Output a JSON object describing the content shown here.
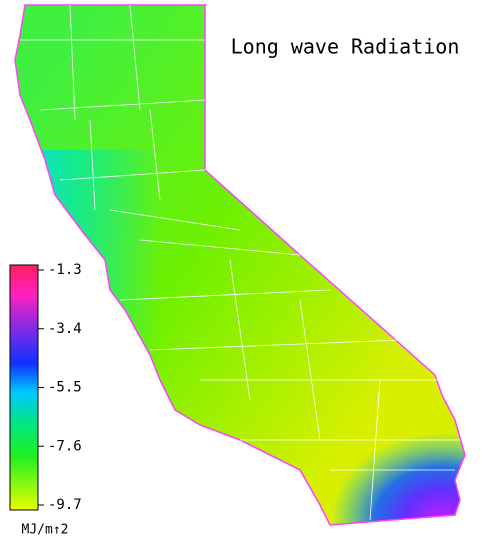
{
  "map": {
    "title": "Long wave Radiation",
    "colorbar": {
      "clim": [
        -9.7,
        -1.3
      ],
      "ticks": [
        -1.3,
        -3.4,
        -5.5,
        -7.6,
        -9.7
      ],
      "unit": "MJ/m↑2"
    }
  }
}
